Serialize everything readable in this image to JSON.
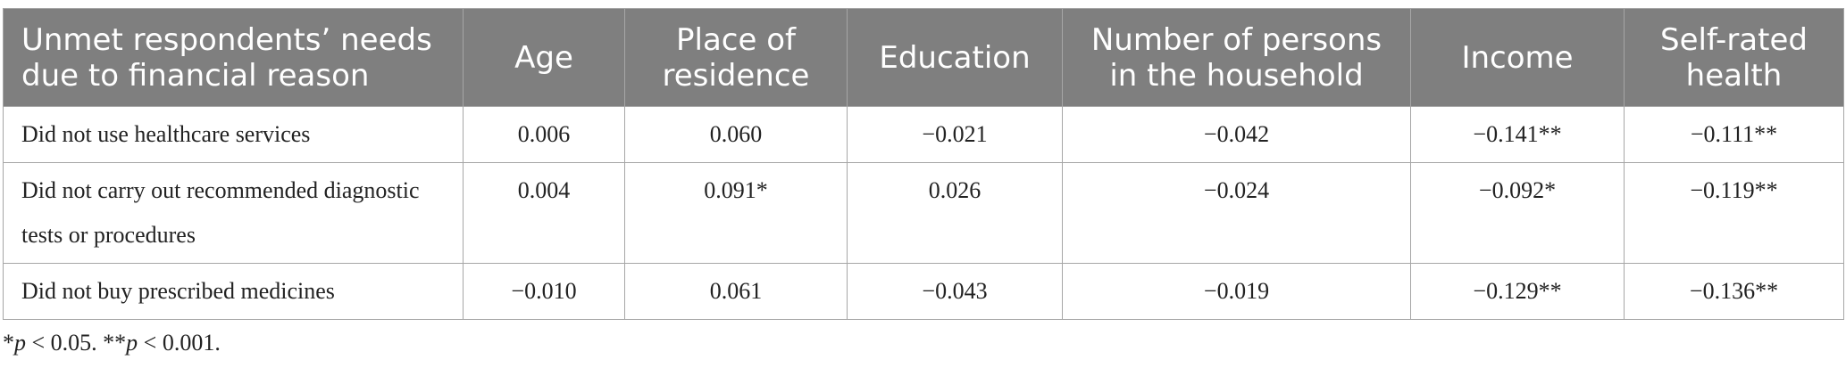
{
  "table": {
    "header": [
      "Unmet respondents’ needs due to financial reason",
      "Age",
      "Place of residence",
      "Education",
      "Number of persons in the household",
      "Income",
      "Self-rated health"
    ],
    "rows": [
      [
        "Did not use healthcare services",
        "0.006",
        "0.060",
        "−0.021",
        "−0.042",
        "−0.141**",
        "−0.111**"
      ],
      [
        "Did not carry out recommended diagnostic tests or procedures",
        "0.004",
        "0.091*",
        "0.026",
        "−0.024",
        "−0.092*",
        "−0.119**"
      ],
      [
        "Did not buy prescribed medicines",
        "−0.010",
        "0.061",
        "−0.043",
        "−0.019",
        "−0.129**",
        "−0.136**"
      ]
    ]
  },
  "footnote": [
    "*",
    "p",
    " < 0.05. **",
    "p",
    " < 0.001."
  ]
}
